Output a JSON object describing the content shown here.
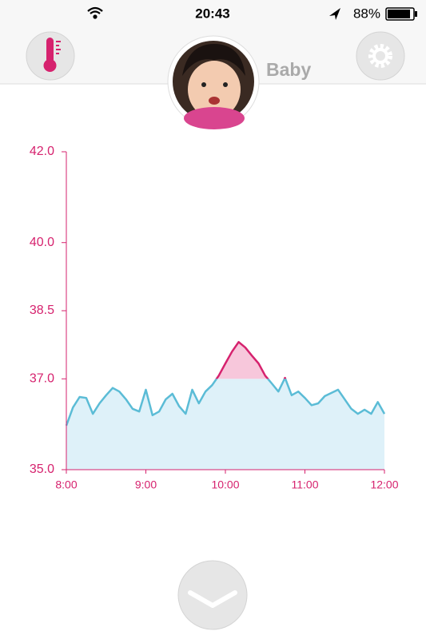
{
  "status_bar": {
    "time": "20:43",
    "battery": "88%"
  },
  "header": {
    "profile_name": "Baby"
  },
  "chart_data": {
    "type": "line",
    "x": [
      480,
      485,
      490,
      495,
      500,
      505,
      510,
      515,
      520,
      525,
      530,
      535,
      540,
      545,
      550,
      555,
      560,
      565,
      570,
      575,
      580,
      585,
      590,
      595,
      600,
      605,
      610,
      615,
      620,
      625,
      630,
      635,
      640,
      645,
      650,
      655,
      660,
      665,
      670,
      675,
      680,
      685,
      690,
      695,
      700,
      705,
      710,
      715,
      720
    ],
    "series": [
      {
        "color": "#5bbcd6",
        "values": [
          35.97,
          36.37,
          36.6,
          36.58,
          36.23,
          36.46,
          36.64,
          36.8,
          36.72,
          36.55,
          36.34,
          36.28,
          36.76,
          36.2,
          36.28,
          36.55,
          36.67,
          36.4,
          36.23,
          36.76,
          36.46,
          36.72,
          36.86,
          37.07,
          37.34,
          37.6,
          37.81,
          37.69,
          37.51,
          37.34,
          37.07,
          36.9,
          36.72,
          37.02,
          36.64,
          36.72,
          36.58,
          36.42,
          36.46,
          36.62,
          36.69,
          36.76,
          36.55,
          36.34,
          36.23,
          36.32,
          36.23,
          36.49,
          36.23
        ]
      }
    ],
    "fill_color": "#def1f9",
    "high_color": "#d6226e",
    "high_fill_color": "#f7c7db",
    "threshold": 37,
    "xlim": [
      480,
      720
    ],
    "xticks": [
      {
        "value": 480,
        "label": "8:00"
      },
      {
        "value": 540,
        "label": "9:00"
      },
      {
        "value": 600,
        "label": "10:00"
      },
      {
        "value": 660,
        "label": "11:00"
      },
      {
        "value": 720,
        "label": "12:00"
      }
    ],
    "ylim": [
      35,
      42
    ],
    "yticks": [
      {
        "value": 35,
        "label": "35.0"
      },
      {
        "value": 37,
        "label": "37.0"
      },
      {
        "value": 38.5,
        "label": "38.5"
      },
      {
        "value": 40,
        "label": "40.0"
      },
      {
        "value": 42,
        "label": "42.0"
      }
    ]
  }
}
